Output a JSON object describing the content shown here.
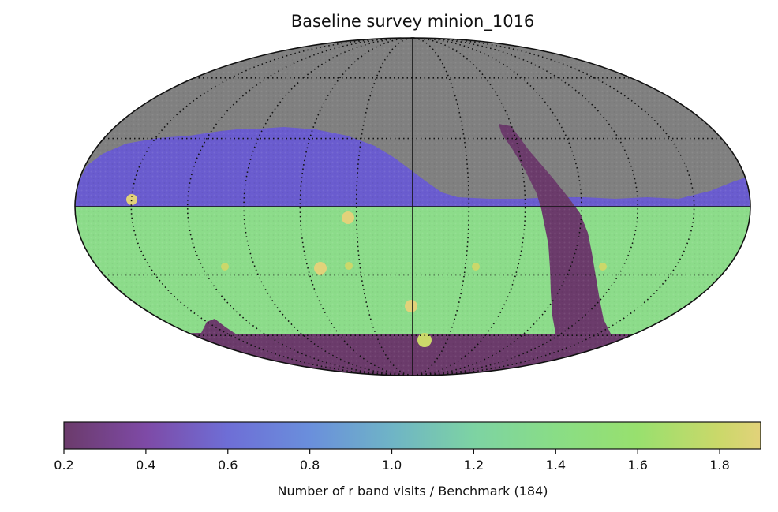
{
  "chart_data": {
    "type": "heatmap",
    "projection": "mollweide",
    "title": "Baseline survey minion_1016",
    "colormap": "viridis-like (purple to yellow)",
    "color_range": [
      0.2,
      1.9
    ],
    "colorbar": {
      "label": "Number of r band visits / Benchmark (184)",
      "orientation": "horizontal",
      "placement": "bottom",
      "ticks": [
        "0.2",
        "0.4",
        "0.6",
        "0.8",
        "1.0",
        "1.2",
        "1.4",
        "1.6",
        "1.8"
      ],
      "tick_values": [
        0.2,
        0.4,
        0.6,
        0.8,
        1.0,
        1.2,
        1.4,
        1.6,
        1.8
      ],
      "stops": [
        {
          "v": 0.2,
          "color": "#6b3b6b"
        },
        {
          "v": 0.4,
          "color": "#7e4aa6"
        },
        {
          "v": 0.6,
          "color": "#6e6ed6"
        },
        {
          "v": 0.8,
          "color": "#6a8fdc"
        },
        {
          "v": 1.0,
          "color": "#6fb4c6"
        },
        {
          "v": 1.2,
          "color": "#7dd3a3"
        },
        {
          "v": 1.4,
          "color": "#89dd86"
        },
        {
          "v": 1.6,
          "color": "#98e06e"
        },
        {
          "v": 1.8,
          "color": "#cbd86a"
        },
        {
          "v": 1.9,
          "color": "#e2d27a"
        }
      ]
    },
    "grid": "dotted",
    "background_value_color": "#808080",
    "regions": [
      {
        "name": "unobserved sky (north)",
        "value": null,
        "color": "#808080"
      },
      {
        "name": "northern band",
        "value": 0.5,
        "color": "#6a5ccf"
      },
      {
        "name": "main wide-fast-deep area",
        "value": 1.4,
        "color": "#8cdc8a"
      },
      {
        "name": "galactic plane strip",
        "value": 0.2,
        "color": "#6b3b6b"
      },
      {
        "name": "south celestial pole cap",
        "value": 0.2,
        "color": "#6b3b6b"
      }
    ],
    "deep_drilling_fields": [
      {
        "value": 1.9
      },
      {
        "value": 1.9
      },
      {
        "value": 1.9
      },
      {
        "value": 1.9
      },
      {
        "value": 1.8
      },
      {
        "value": 1.8
      },
      {
        "value": 1.8
      },
      {
        "value": 1.8
      },
      {
        "value": 1.8
      }
    ]
  }
}
